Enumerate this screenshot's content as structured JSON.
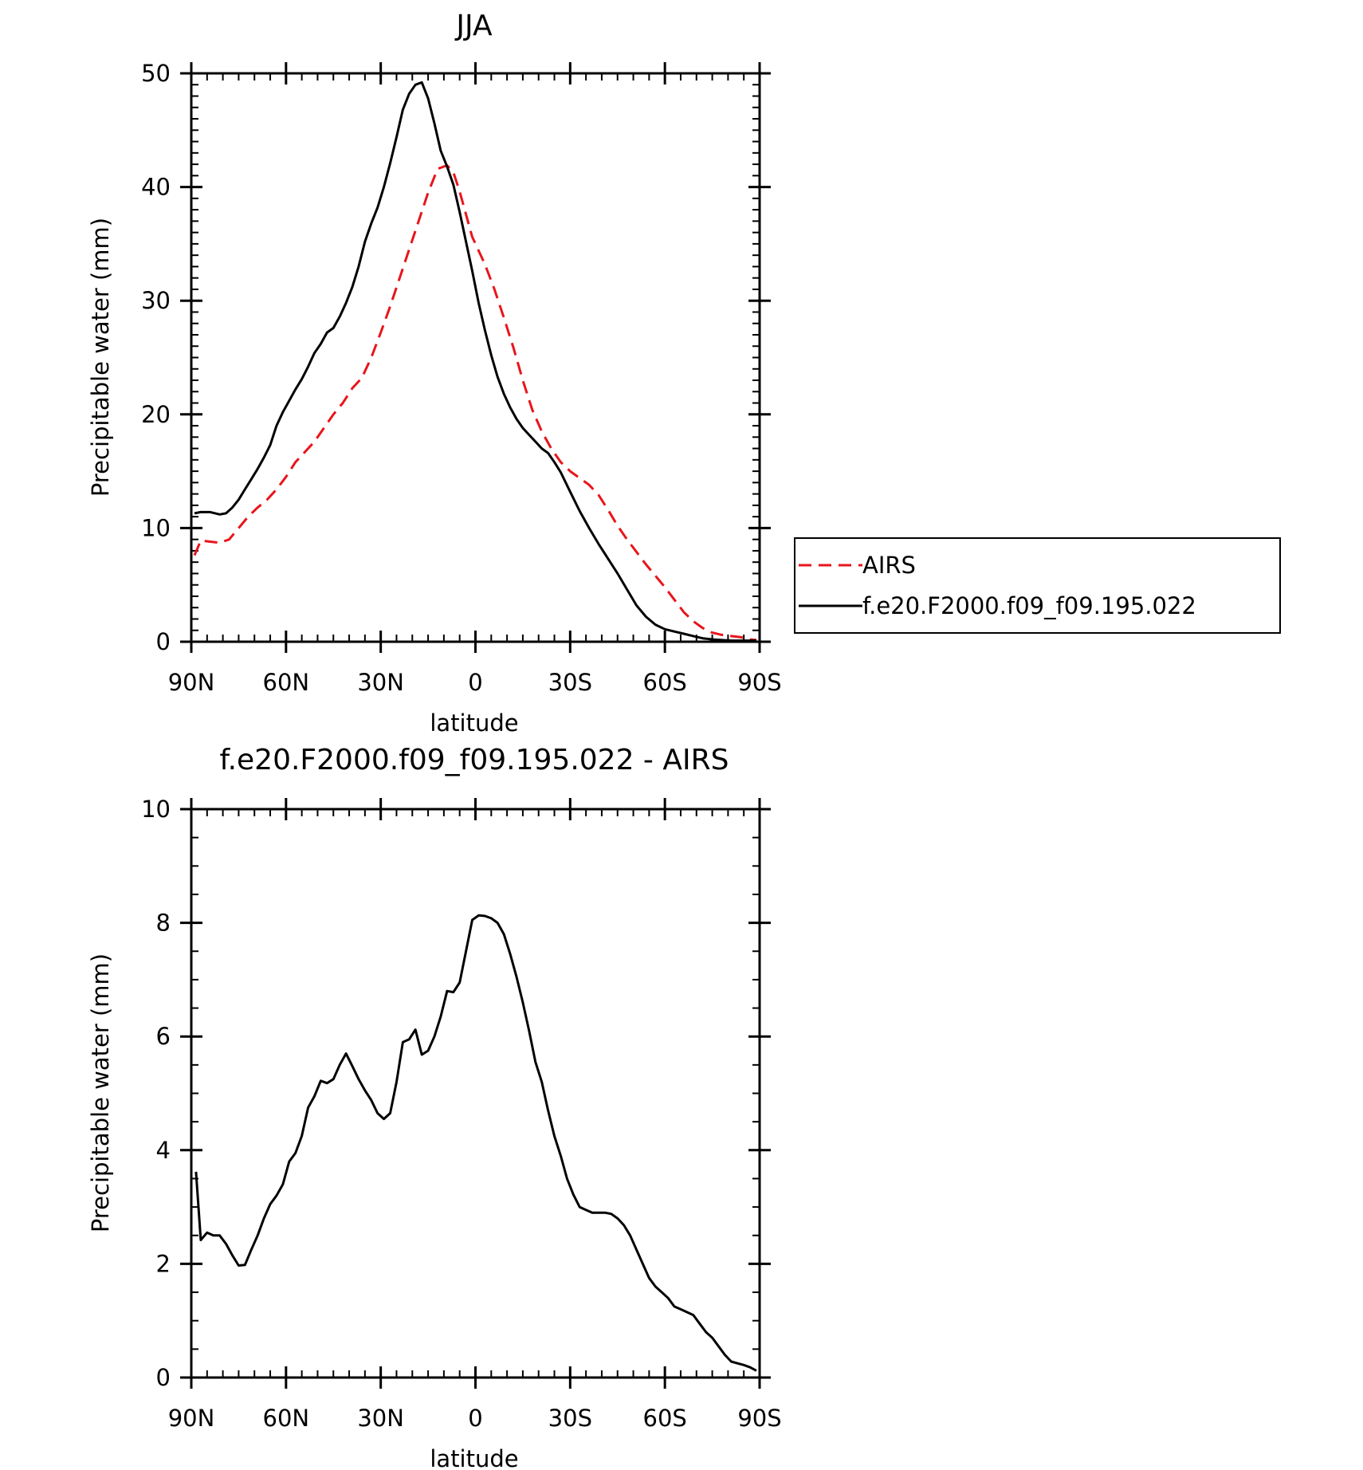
{
  "chart_data": [
    {
      "type": "line",
      "title": "JJA",
      "xlabel": "latitude",
      "ylabel": "Precipitable water (mm)",
      "xlim": [
        90,
        -90
      ],
      "ylim": [
        0,
        50
      ],
      "x_ticks": [
        {
          "value": 90,
          "label": "90N"
        },
        {
          "value": 60,
          "label": "60N"
        },
        {
          "value": 30,
          "label": "30N"
        },
        {
          "value": 0,
          "label": "0"
        },
        {
          "value": -30,
          "label": "30S"
        },
        {
          "value": -60,
          "label": "60S"
        },
        {
          "value": -90,
          "label": "90S"
        }
      ],
      "y_ticks": [
        {
          "value": 0,
          "label": "0"
        },
        {
          "value": 10,
          "label": "10"
        },
        {
          "value": 20,
          "label": "20"
        },
        {
          "value": 30,
          "label": "30"
        },
        {
          "value": 40,
          "label": "40"
        },
        {
          "value": 50,
          "label": "50"
        }
      ],
      "legend": {
        "position": "right",
        "entries": [
          {
            "label": "AIRS",
            "color": "#e8151b",
            "style": "dashed"
          },
          {
            "label": "f.e20.F2000.f09_f09.195.022",
            "color": "#000000",
            "style": "solid"
          }
        ]
      },
      "series": [
        {
          "name": "AIRS",
          "color": "#e8151b",
          "style": "dashed",
          "x": [
            89,
            87,
            84,
            81,
            78,
            75,
            72,
            69,
            66,
            63,
            60,
            57,
            54,
            51,
            48,
            45,
            42,
            39,
            36,
            33,
            30,
            27,
            24,
            21,
            18,
            15,
            12,
            9,
            7,
            5,
            3,
            1,
            -1,
            -3,
            -6,
            -9,
            -12,
            -15,
            -18,
            -21,
            -24,
            -27,
            -30,
            -33,
            -36,
            -39,
            -42,
            -45,
            -48,
            -51,
            -54,
            -57,
            -60,
            -63,
            -66,
            -69,
            -72,
            -75,
            -78,
            -81,
            -84,
            -87,
            -89
          ],
          "values": [
            7.6,
            8.9,
            8.8,
            8.7,
            9.0,
            10.0,
            11.0,
            11.8,
            12.5,
            13.4,
            14.5,
            15.8,
            16.7,
            17.6,
            18.8,
            20.0,
            21.0,
            22.3,
            23.2,
            25.0,
            27.2,
            29.5,
            32.0,
            34.5,
            37.0,
            39.5,
            41.6,
            41.9,
            41.3,
            39.6,
            37.6,
            35.6,
            34.4,
            33.2,
            31.0,
            28.5,
            25.9,
            23.0,
            20.4,
            18.5,
            17.0,
            15.8,
            15.0,
            14.4,
            13.8,
            12.9,
            11.6,
            10.2,
            9.0,
            7.9,
            6.8,
            5.8,
            4.8,
            3.7,
            2.6,
            1.8,
            1.2,
            0.8,
            0.6,
            0.5,
            0.4,
            0.2,
            0.15
          ]
        },
        {
          "name": "f.e20.F2000.f09_f09.195.022",
          "color": "#000000",
          "style": "solid",
          "x": [
            89,
            87,
            84,
            81,
            79,
            77,
            75,
            73,
            71,
            69,
            67,
            65,
            63,
            61,
            59,
            57,
            55,
            53,
            51,
            49,
            47,
            45,
            43,
            41,
            39,
            37,
            35,
            33,
            31,
            29,
            27,
            25,
            23,
            21,
            19,
            17,
            15,
            13,
            11,
            9,
            7,
            5,
            3,
            1,
            -1,
            -3,
            -5,
            -7,
            -9,
            -11,
            -13,
            -15,
            -17,
            -19,
            -21,
            -23,
            -25,
            -27,
            -30,
            -33,
            -36,
            -39,
            -42,
            -45,
            -48,
            -51,
            -54,
            -57,
            -60,
            -63,
            -66,
            -69,
            -72,
            -75,
            -78,
            -81,
            -84,
            -87,
            -89
          ],
          "values": [
            11.3,
            11.4,
            11.4,
            11.2,
            11.3,
            11.8,
            12.5,
            13.4,
            14.3,
            15.2,
            16.2,
            17.3,
            19.0,
            20.2,
            21.2,
            22.2,
            23.1,
            24.2,
            25.4,
            26.2,
            27.2,
            27.6,
            28.6,
            29.8,
            31.2,
            33.0,
            35.2,
            36.8,
            38.2,
            40.0,
            42.1,
            44.4,
            46.8,
            48.2,
            49.0,
            49.2,
            47.8,
            45.6,
            43.2,
            41.8,
            40.2,
            37.8,
            35.2,
            32.6,
            29.8,
            27.4,
            25.2,
            23.3,
            21.8,
            20.6,
            19.6,
            18.8,
            18.2,
            17.6,
            17.0,
            16.6,
            15.8,
            14.9,
            13.2,
            11.5,
            10.0,
            8.6,
            7.3,
            6.0,
            4.6,
            3.2,
            2.2,
            1.5,
            1.1,
            0.9,
            0.7,
            0.5,
            0.3,
            0.2,
            0.15,
            0.1,
            0.1,
            0.1,
            0.1
          ]
        }
      ]
    },
    {
      "type": "line",
      "title": "f.e20.F2000.f09_f09.195.022 - AIRS",
      "xlabel": "latitude",
      "ylabel": "Precipitable water (mm)",
      "xlim": [
        90,
        -90
      ],
      "ylim": [
        0,
        10
      ],
      "x_ticks": [
        {
          "value": 90,
          "label": "90N"
        },
        {
          "value": 60,
          "label": "60N"
        },
        {
          "value": 30,
          "label": "30N"
        },
        {
          "value": 0,
          "label": "0"
        },
        {
          "value": -30,
          "label": "30S"
        },
        {
          "value": -60,
          "label": "60S"
        },
        {
          "value": -90,
          "label": "90S"
        }
      ],
      "y_ticks": [
        {
          "value": 0,
          "label": "0"
        },
        {
          "value": 2,
          "label": "2"
        },
        {
          "value": 4,
          "label": "4"
        },
        {
          "value": 6,
          "label": "6"
        },
        {
          "value": 8,
          "label": "8"
        },
        {
          "value": 10,
          "label": "10"
        }
      ],
      "series": [
        {
          "name": "f.e20.F2000.f09_f09.195.022 - AIRS",
          "color": "#000000",
          "style": "solid",
          "x": [
            88.5,
            87,
            85,
            83,
            81,
            79,
            77,
            75,
            73,
            71,
            69,
            67,
            65,
            63,
            61,
            59,
            57,
            55,
            53,
            51,
            49,
            47,
            45,
            43,
            41,
            39,
            37,
            35,
            33,
            31,
            29,
            27,
            25,
            23,
            21,
            19,
            17,
            15,
            13,
            11,
            9,
            7,
            5,
            3,
            1,
            -1,
            -3,
            -5,
            -7,
            -9,
            -11,
            -13,
            -15,
            -17,
            -19,
            -21,
            -23,
            -25,
            -27,
            -29,
            -31,
            -33,
            -35,
            -37,
            -39,
            -41,
            -43,
            -45,
            -47,
            -49,
            -51,
            -53,
            -55,
            -57,
            -59,
            -61,
            -63,
            -65,
            -67,
            -69,
            -71,
            -73,
            -75,
            -77,
            -79,
            -81,
            -83,
            -85,
            -87,
            -89
          ],
          "values": [
            3.62,
            2.42,
            2.55,
            2.5,
            2.5,
            2.35,
            2.15,
            1.97,
            1.98,
            2.25,
            2.5,
            2.8,
            3.05,
            3.2,
            3.4,
            3.8,
            3.95,
            4.25,
            4.75,
            4.95,
            5.22,
            5.18,
            5.25,
            5.5,
            5.7,
            5.48,
            5.25,
            5.05,
            4.88,
            4.65,
            4.55,
            4.65,
            5.2,
            5.9,
            5.95,
            6.12,
            5.68,
            5.75,
            6.0,
            6.35,
            6.8,
            6.78,
            6.95,
            7.5,
            8.05,
            8.13,
            8.12,
            8.08,
            8.0,
            7.8,
            7.45,
            7.05,
            6.6,
            6.1,
            5.55,
            5.2,
            4.7,
            4.25,
            3.9,
            3.5,
            3.22,
            3.0,
            2.95,
            2.9,
            2.9,
            2.9,
            2.88,
            2.8,
            2.68,
            2.5,
            2.25,
            2.0,
            1.75,
            1.6,
            1.5,
            1.4,
            1.25,
            1.2,
            1.15,
            1.1,
            0.95,
            0.8,
            0.7,
            0.55,
            0.4,
            0.28,
            0.25,
            0.22,
            0.18,
            0.12
          ]
        }
      ]
    }
  ]
}
